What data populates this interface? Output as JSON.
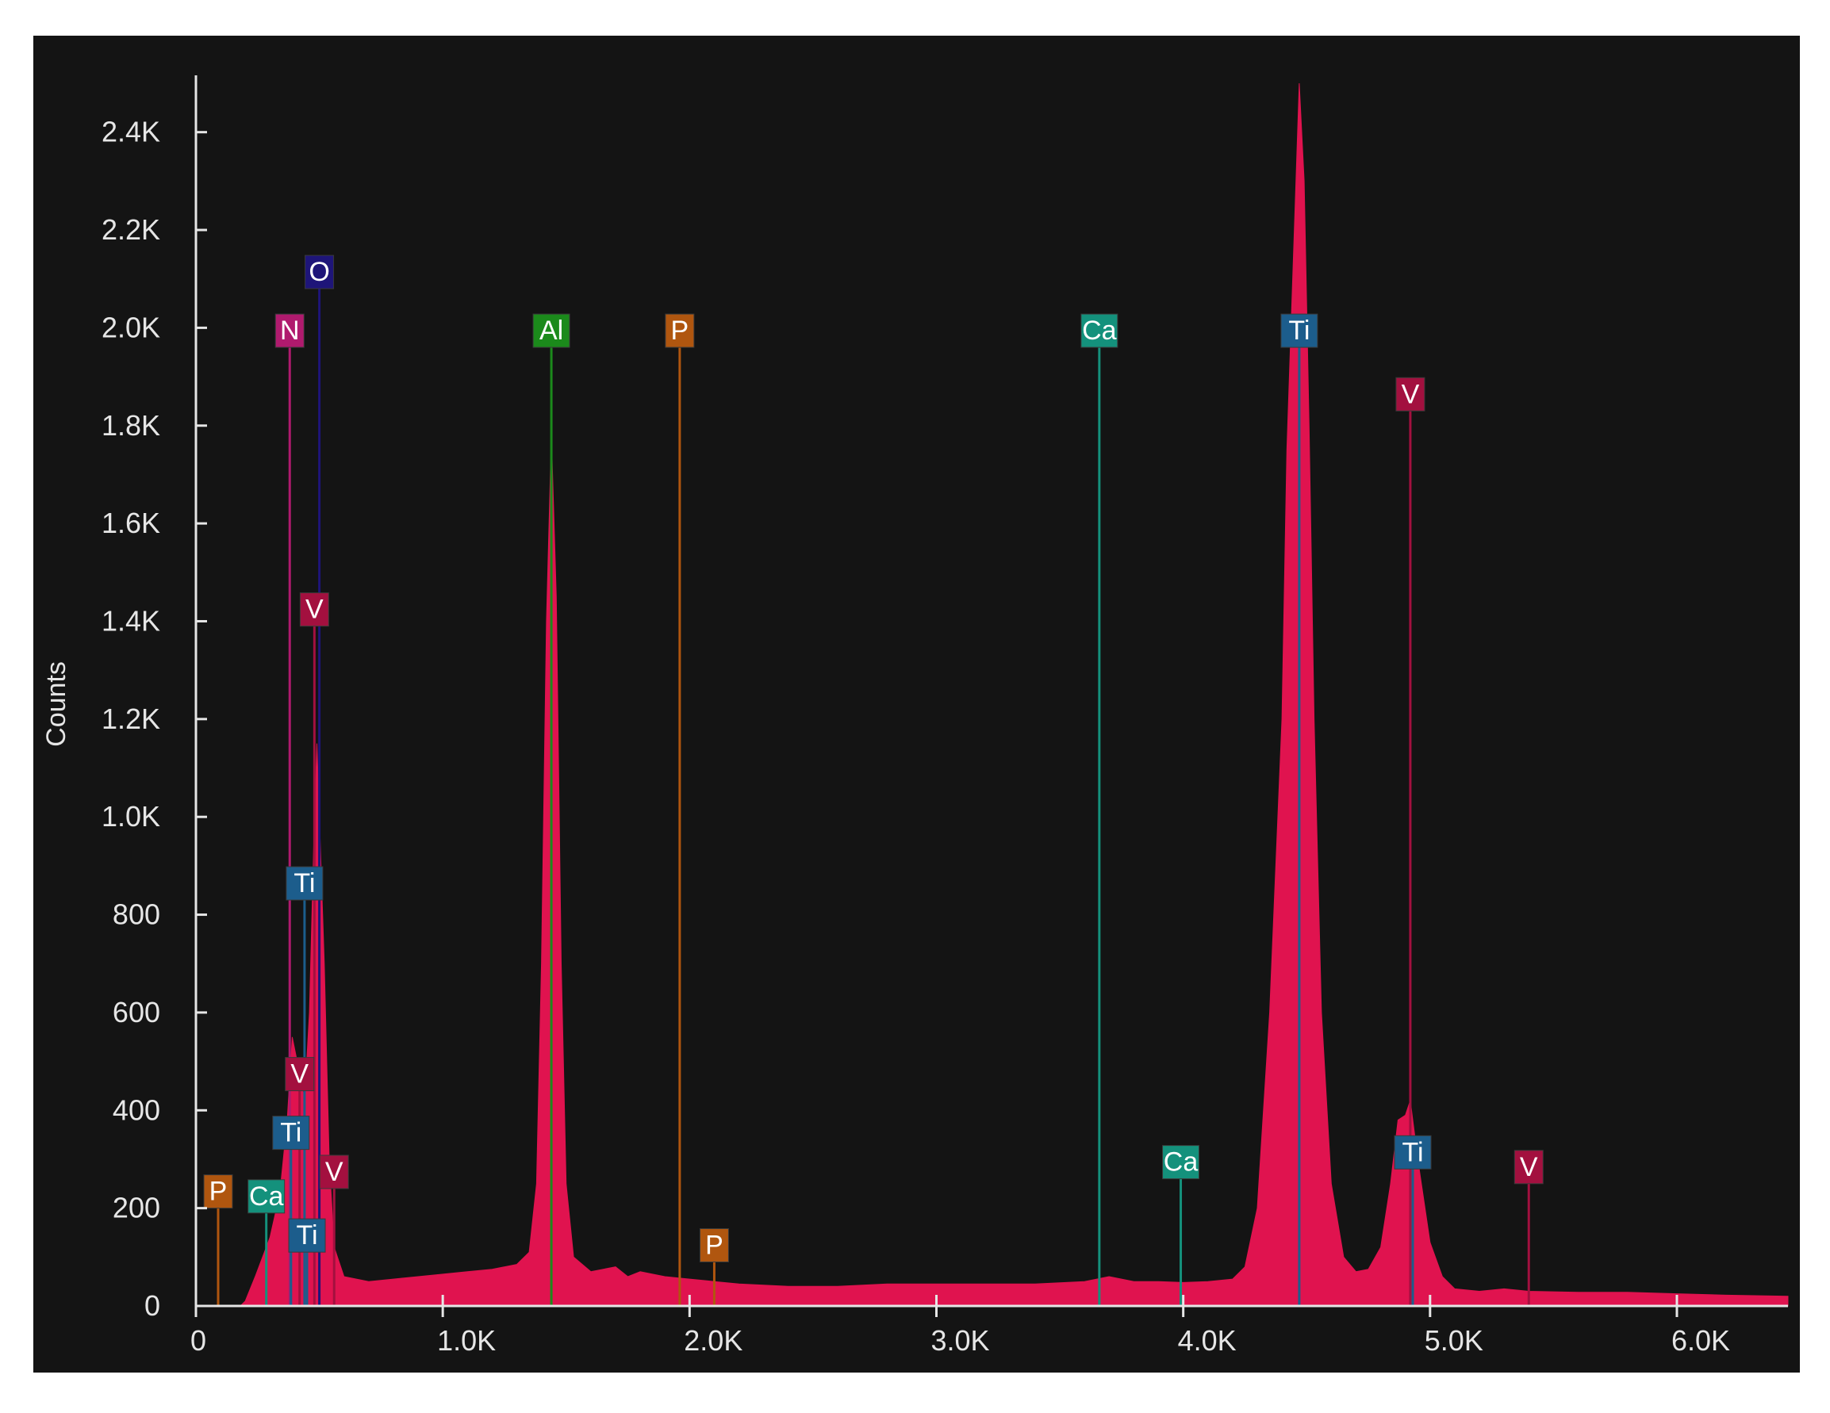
{
  "chart_data": {
    "type": "area",
    "xlabel": "",
    "ylabel": "Counts",
    "xlim": [
      0,
      6450
    ],
    "ylim": [
      0,
      2500
    ],
    "x_ticks": [
      0,
      1000,
      2000,
      3000,
      4000,
      5000,
      6000
    ],
    "x_tick_labels": [
      "0",
      "1.0K",
      "2.0K",
      "3.0K",
      "4.0K",
      "5.0K",
      "6.0K"
    ],
    "y_ticks": [
      0,
      200,
      400,
      600,
      800,
      1000,
      1200,
      1400,
      1600,
      1800,
      2000,
      2200,
      2400
    ],
    "y_tick_labels": [
      "0",
      "200",
      "400",
      "600",
      "800",
      "1.0K",
      "1.2K",
      "1.4K",
      "1.6K",
      "1.8K",
      "2.0K",
      "2.2K",
      "2.4K"
    ],
    "grid": false,
    "spectrum": {
      "color": "#e0134f",
      "baseline": [
        [
          180,
          0
        ],
        [
          200,
          10
        ],
        [
          240,
          60
        ],
        [
          300,
          140
        ],
        [
          340,
          230
        ],
        [
          370,
          380
        ],
        [
          390,
          550
        ],
        [
          410,
          500
        ],
        [
          440,
          420
        ],
        [
          460,
          600
        ],
        [
          480,
          1000
        ],
        [
          490,
          1150
        ],
        [
          500,
          1000
        ],
        [
          520,
          700
        ],
        [
          540,
          300
        ],
        [
          560,
          120
        ],
        [
          600,
          60
        ],
        [
          700,
          50
        ],
        [
          800,
          55
        ],
        [
          900,
          60
        ],
        [
          1000,
          65
        ],
        [
          1100,
          70
        ],
        [
          1200,
          75
        ],
        [
          1300,
          85
        ],
        [
          1350,
          110
        ],
        [
          1380,
          250
        ],
        [
          1400,
          700
        ],
        [
          1420,
          1400
        ],
        [
          1440,
          1780
        ],
        [
          1460,
          1450
        ],
        [
          1480,
          700
        ],
        [
          1500,
          250
        ],
        [
          1530,
          100
        ],
        [
          1600,
          70
        ],
        [
          1700,
          80
        ],
        [
          1750,
          60
        ],
        [
          1800,
          70
        ],
        [
          1900,
          60
        ],
        [
          2000,
          55
        ],
        [
          2100,
          50
        ],
        [
          2200,
          45
        ],
        [
          2400,
          40
        ],
        [
          2600,
          40
        ],
        [
          2800,
          45
        ],
        [
          3000,
          45
        ],
        [
          3200,
          45
        ],
        [
          3400,
          45
        ],
        [
          3600,
          50
        ],
        [
          3700,
          60
        ],
        [
          3800,
          50
        ],
        [
          3900,
          50
        ],
        [
          4000,
          48
        ],
        [
          4100,
          50
        ],
        [
          4200,
          55
        ],
        [
          4250,
          80
        ],
        [
          4300,
          200
        ],
        [
          4350,
          600
        ],
        [
          4400,
          1200
        ],
        [
          4420,
          1750
        ],
        [
          4450,
          2200
        ],
        [
          4470,
          2500
        ],
        [
          4490,
          2300
        ],
        [
          4510,
          1800
        ],
        [
          4530,
          1200
        ],
        [
          4560,
          600
        ],
        [
          4600,
          250
        ],
        [
          4650,
          100
        ],
        [
          4700,
          70
        ],
        [
          4750,
          75
        ],
        [
          4800,
          120
        ],
        [
          4840,
          250
        ],
        [
          4870,
          380
        ],
        [
          4900,
          390
        ],
        [
          4920,
          420
        ],
        [
          4950,
          300
        ],
        [
          5000,
          130
        ],
        [
          5050,
          60
        ],
        [
          5100,
          35
        ],
        [
          5200,
          30
        ],
        [
          5300,
          35
        ],
        [
          5400,
          30
        ],
        [
          5600,
          28
        ],
        [
          5800,
          28
        ],
        [
          6000,
          25
        ],
        [
          6200,
          22
        ],
        [
          6450,
          20
        ]
      ]
    },
    "element_lines": [
      {
        "symbol": "O",
        "x": 500,
        "label_y": 2080,
        "color": "#1e1579"
      },
      {
        "symbol": "N",
        "x": 380,
        "label_y": 1960,
        "color": "#b01a6e"
      },
      {
        "symbol": "Al",
        "x": 1440,
        "label_y": 1960,
        "color": "#1b8a1b"
      },
      {
        "symbol": "P",
        "x": 1960,
        "label_y": 1960,
        "color": "#b0560f"
      },
      {
        "symbol": "Ca",
        "x": 3660,
        "label_y": 1960,
        "color": "#14917c"
      },
      {
        "symbol": "Ti",
        "x": 4470,
        "label_y": 1960,
        "color": "#1c5d8c"
      },
      {
        "symbol": "V",
        "x": 4920,
        "label_y": 1830,
        "color": "#a3103f"
      },
      {
        "symbol": "V",
        "x": 480,
        "label_y": 1390,
        "color": "#a3103f"
      },
      {
        "symbol": "Ti",
        "x": 440,
        "label_y": 830,
        "color": "#1c5d8c"
      },
      {
        "symbol": "V",
        "x": 420,
        "label_y": 440,
        "color": "#a3103f"
      },
      {
        "symbol": "Ti",
        "x": 385,
        "label_y": 320,
        "color": "#1c5d8c"
      },
      {
        "symbol": "V",
        "x": 560,
        "label_y": 240,
        "color": "#a3103f"
      },
      {
        "symbol": "P",
        "x": 90,
        "label_y": 200,
        "color": "#b0560f"
      },
      {
        "symbol": "Ca",
        "x": 285,
        "label_y": 190,
        "color": "#14917c"
      },
      {
        "symbol": "Ti",
        "x": 450,
        "label_y": 110,
        "color": "#1c5d8c"
      },
      {
        "symbol": "P",
        "x": 2100,
        "label_y": 90,
        "color": "#b0560f"
      },
      {
        "symbol": "Ca",
        "x": 3990,
        "label_y": 260,
        "color": "#14917c"
      },
      {
        "symbol": "Ti",
        "x": 4930,
        "label_y": 280,
        "color": "#1c5d8c"
      },
      {
        "symbol": "V",
        "x": 5400,
        "label_y": 250,
        "color": "#a3103f"
      }
    ]
  }
}
